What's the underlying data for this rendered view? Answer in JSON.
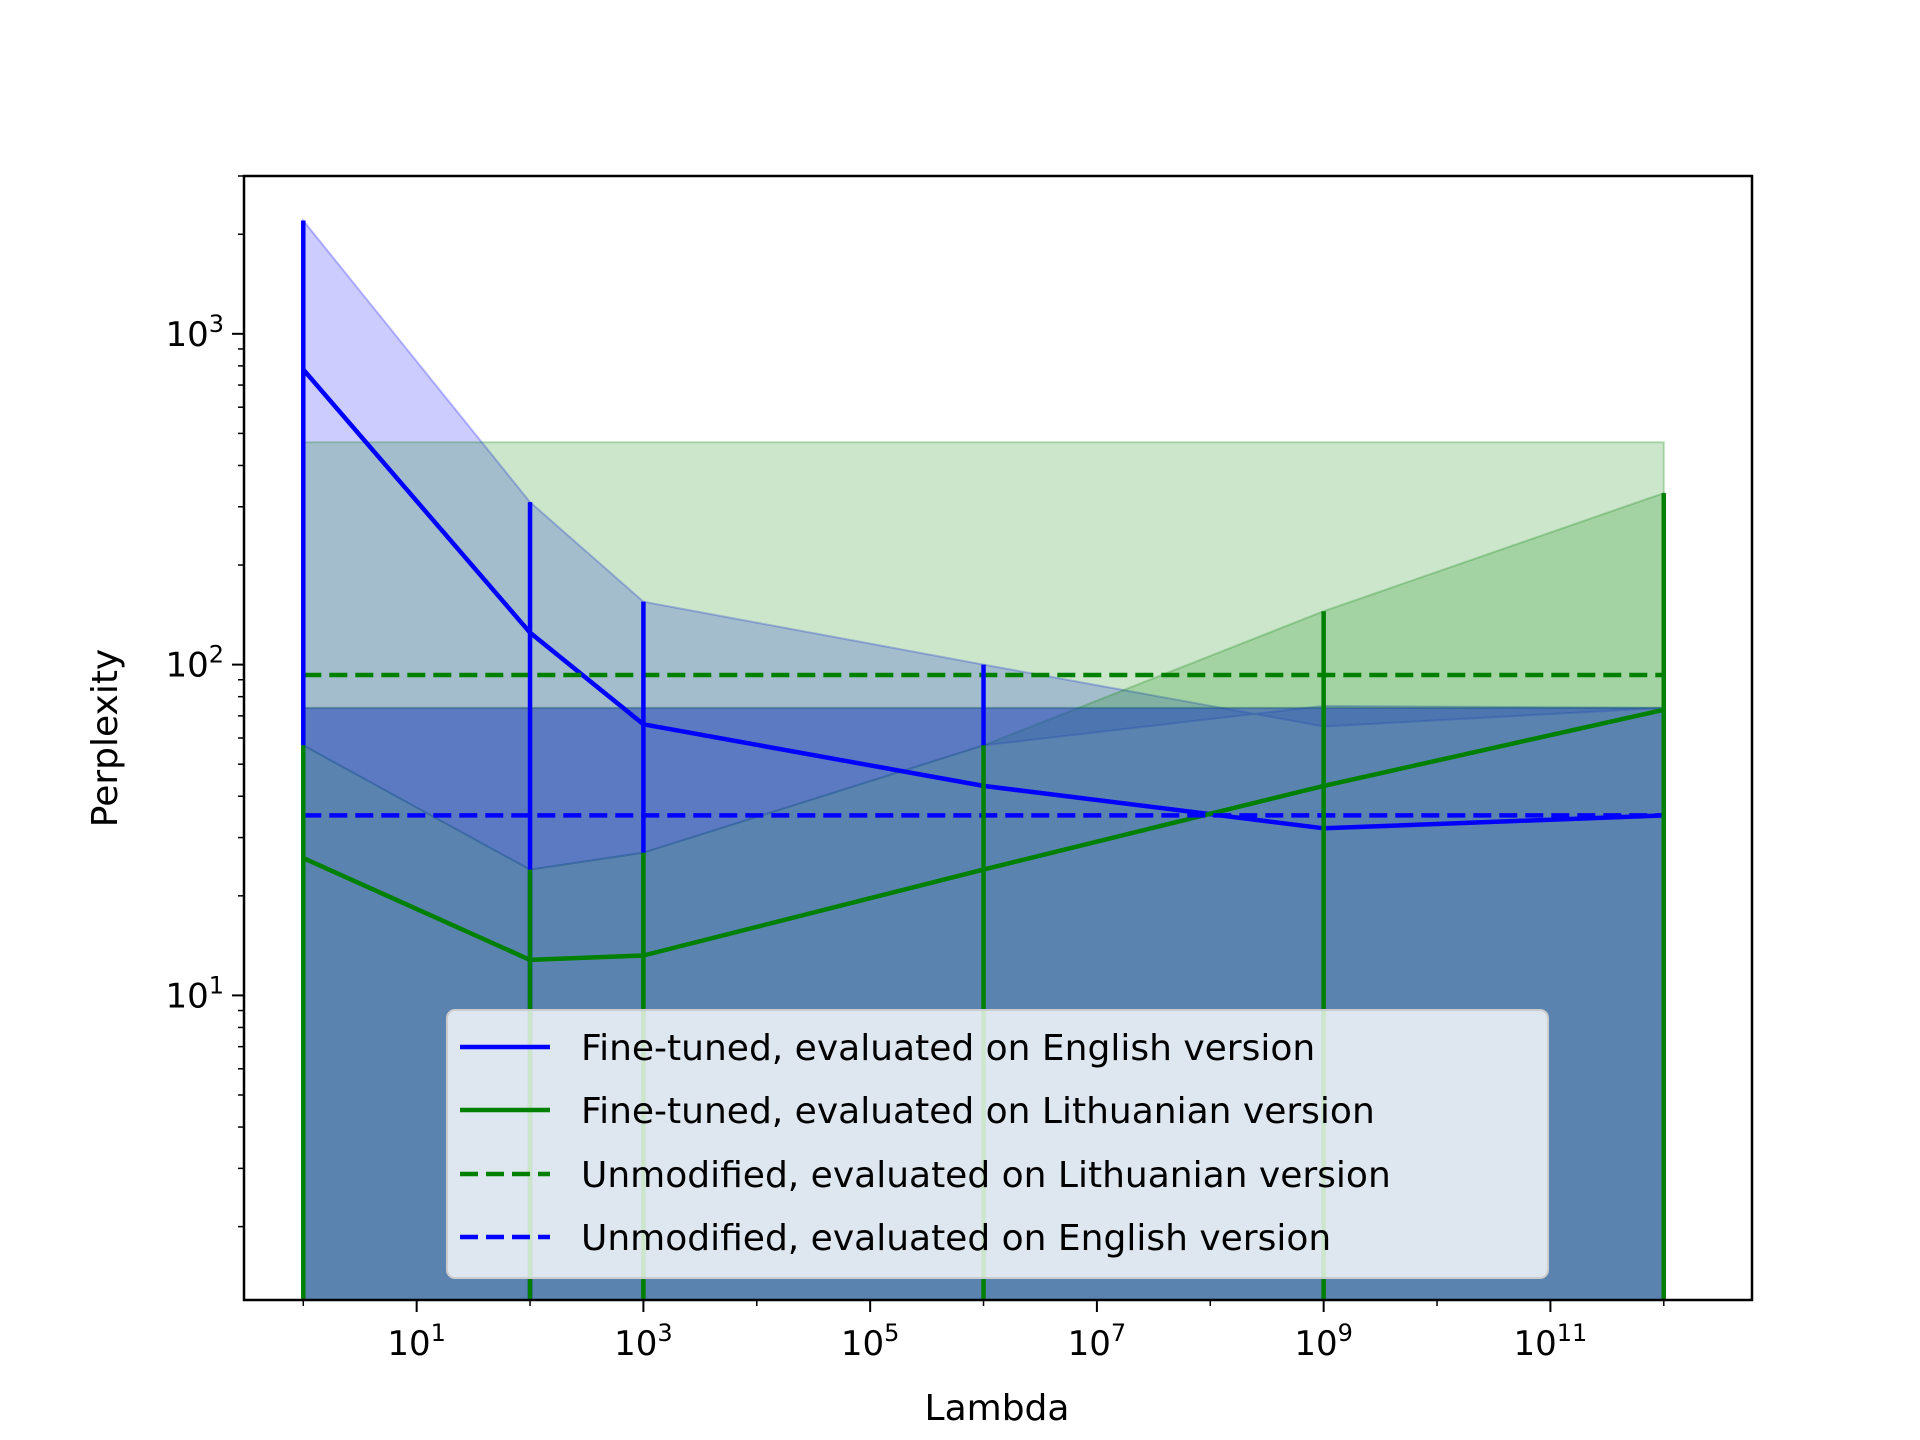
{
  "chart_data": {
    "type": "line",
    "title": "",
    "xlabel": "Lambda",
    "ylabel": "Perplexity",
    "x_scale": "log",
    "y_scale": "log",
    "xlim": [
      0.3,
      6000000000000
    ],
    "ylim": [
      1.2,
      3000
    ],
    "x_ticks": [
      {
        "value": 10,
        "label": "10",
        "exp": "1"
      },
      {
        "value": 1000,
        "label": "10",
        "exp": "3"
      },
      {
        "value": 100000,
        "label": "10",
        "exp": "5"
      },
      {
        "value": 10000000,
        "label": "10",
        "exp": "7"
      },
      {
        "value": 1000000000,
        "label": "10",
        "exp": "9"
      },
      {
        "value": 100000000000,
        "label": "10",
        "exp": "11"
      }
    ],
    "y_ticks": [
      {
        "value": 10,
        "label": "10",
        "exp": "1"
      },
      {
        "value": 100,
        "label": "10",
        "exp": "2"
      },
      {
        "value": 1000,
        "label": "10",
        "exp": "3"
      }
    ],
    "grid": false,
    "legend_position": "lower-center",
    "series": [
      {
        "name": "Fine-tuned, evaluated on English version",
        "color": "#0000ff",
        "linestyle": "solid",
        "x": [
          1,
          100,
          1000,
          1000000,
          1000000000,
          1000000000000
        ],
        "y": [
          780,
          125,
          66,
          43,
          32,
          35
        ],
        "band_upper": [
          2200,
          310,
          155,
          100,
          65,
          74
        ],
        "band_lower": [
          57,
          24,
          27,
          57,
          75,
          74
        ],
        "band_fill": "#0000ff",
        "band_alpha": 0.2
      },
      {
        "name": "Fine-tuned, evaluated on Lithuanian version",
        "color": "#008000",
        "linestyle": "solid",
        "x": [
          1,
          100,
          1000,
          1000000,
          1000000000,
          1000000000000
        ],
        "y": [
          26,
          12.8,
          13.2,
          24,
          43,
          73
        ],
        "band_upper": [
          57,
          24,
          27,
          57,
          145,
          330
        ],
        "band_lower": [
          1.2,
          1.2,
          1.2,
          1.2,
          1.2,
          1.2
        ],
        "band_fill": "#008000",
        "band_alpha": 0.2
      },
      {
        "name": "Unmodified, evaluated on Lithuanian version",
        "color": "#008000",
        "linestyle": "dashed",
        "x": [
          1,
          1000000000000
        ],
        "y": [
          93,
          93
        ],
        "band_upper": [
          470,
          470
        ],
        "band_lower": [
          74,
          74
        ],
        "band_fill": "#008000",
        "band_alpha": 0.2
      },
      {
        "name": "Unmodified, evaluated on English version",
        "color": "#0000ff",
        "linestyle": "dashed",
        "x": [
          1,
          1000000000000
        ],
        "y": [
          35,
          35
        ],
        "band_upper": [
          74,
          74
        ],
        "band_lower": [
          1.2,
          1.2
        ],
        "band_fill": "#1f4f9f",
        "band_alpha": 0.65
      }
    ],
    "error_bars": [
      {
        "series": "Fine-tuned, evaluated on English version",
        "color": "#0000ff",
        "x": [
          1,
          100,
          1000,
          1000000
        ],
        "upper": [
          2200,
          310,
          155,
          100
        ],
        "lower": [
          57,
          1.2,
          27,
          57
        ]
      },
      {
        "series": "Fine-tuned, evaluated on Lithuanian version",
        "color": "#008000",
        "x": [
          1,
          100,
          1000,
          1000000,
          1000000000,
          1000000000000
        ],
        "upper": [
          57,
          24,
          27,
          57,
          145,
          330
        ],
        "lower": [
          1.2,
          1.2,
          1.2,
          1.2,
          1.2,
          1.2
        ]
      }
    ]
  }
}
